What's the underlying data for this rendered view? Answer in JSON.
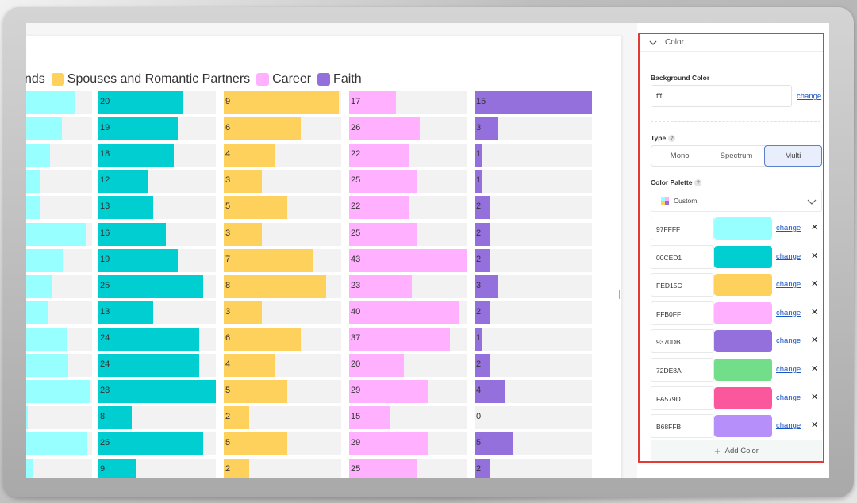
{
  "legend": [
    {
      "label": "nds",
      "color": ""
    },
    {
      "label": "Spouses and Romantic Partners",
      "color": "#FED15C"
    },
    {
      "label": "Career",
      "color": "#FFB0FF"
    },
    {
      "label": "Faith",
      "color": "#9370DB"
    }
  ],
  "columns": [
    {
      "color": "#97FFFF",
      "values": [
        null,
        null,
        null,
        null,
        null,
        null,
        null,
        null,
        null,
        null,
        null,
        null,
        null,
        null,
        null
      ],
      "fills": [
        0.73,
        0.54,
        0.36,
        0.21,
        0.21,
        0.91,
        0.57,
        0.4,
        0.33,
        0.61,
        0.64,
        0.96,
        0.02,
        0.93,
        0.11
      ],
      "max": 1
    },
    {
      "color": "#00CED1",
      "values": [
        20,
        19,
        18,
        12,
        13,
        16,
        19,
        25,
        13,
        24,
        24,
        28,
        8,
        25,
        9
      ],
      "max": 28
    },
    {
      "color": "#FED15C",
      "values": [
        9,
        6,
        4,
        3,
        5,
        3,
        7,
        8,
        3,
        6,
        4,
        5,
        2,
        5,
        2
      ],
      "max": 9.2
    },
    {
      "color": "#FFB0FF",
      "values": [
        17,
        26,
        22,
        25,
        22,
        25,
        43,
        23,
        40,
        37,
        20,
        29,
        15,
        29,
        25
      ],
      "max": 43
    },
    {
      "color": "#9370DB",
      "values": [
        15,
        3,
        1,
        1,
        2,
        2,
        2,
        3,
        2,
        1,
        2,
        4,
        0,
        5,
        2
      ],
      "max": 15
    }
  ],
  "panel": {
    "section_title": "Color",
    "background_color_label": "Background Color",
    "background_value": "fff",
    "change_label": "change",
    "type_label": "Type",
    "type_options": [
      "Mono",
      "Spectrum",
      "Multi"
    ],
    "type_selected": "Multi",
    "palette_label": "Color Palette",
    "palette_value": "Custom",
    "help_glyph": "?",
    "colors": [
      {
        "hex": "97FFFF",
        "color": "#97FFFF"
      },
      {
        "hex": "00CED1",
        "color": "#00CED1"
      },
      {
        "hex": "FED15C",
        "color": "#FED15C"
      },
      {
        "hex": "FFB0FF",
        "color": "#FFB0FF"
      },
      {
        "hex": "9370DB",
        "color": "#9370DB"
      },
      {
        "hex": "72DE8A",
        "color": "#72DE8A"
      },
      {
        "hex": "FA579D",
        "color": "#FA579D"
      },
      {
        "hex": "B68FFB",
        "color": "#B68FFB"
      }
    ],
    "remove_glyph": "✕",
    "add_color_label": "Add Color",
    "add_glyph": "+"
  }
}
